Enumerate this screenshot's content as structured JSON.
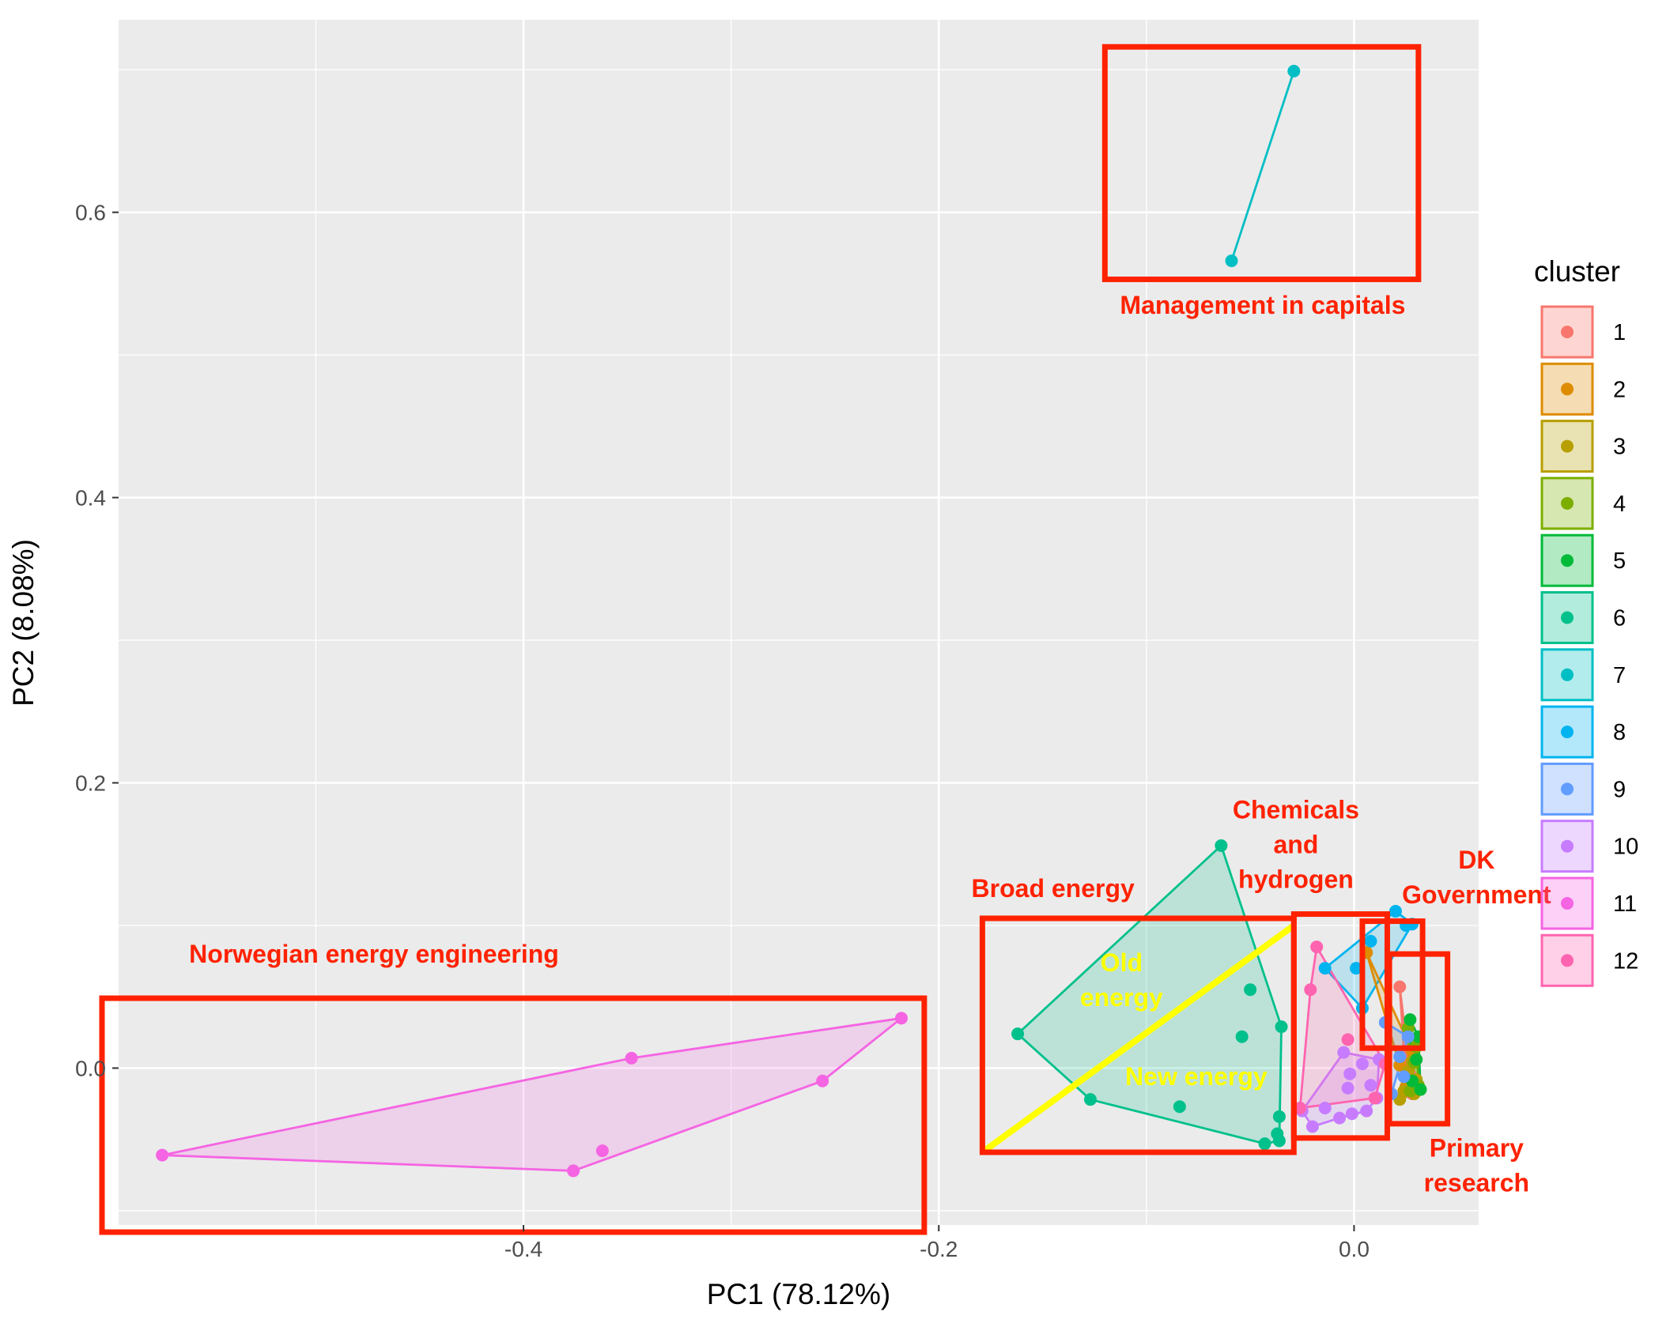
{
  "chart_data": {
    "type": "scatter",
    "xlabel": "PC1 (78.12%)",
    "ylabel": "PC2 (8.08%)",
    "xlim": [
      -0.595,
      0.06
    ],
    "ylim": [
      -0.11,
      0.735
    ],
    "x_ticks": [
      -0.4,
      -0.2,
      0.0
    ],
    "x_tick_labels": [
      "-0.4",
      "-0.2",
      "0.0"
    ],
    "y_ticks": [
      0.0,
      0.2,
      0.4,
      0.6
    ],
    "y_tick_labels": [
      "0.0",
      "0.2",
      "0.4",
      "0.6"
    ],
    "grid": true,
    "legend": {
      "title": "cluster",
      "position": "right",
      "entries": [
        {
          "label": "1",
          "color": "#F8766D"
        },
        {
          "label": "2",
          "color": "#DE8C00"
        },
        {
          "label": "3",
          "color": "#B79F00"
        },
        {
          "label": "4",
          "color": "#7CAE00"
        },
        {
          "label": "5",
          "color": "#00BA38"
        },
        {
          "label": "6",
          "color": "#00C08B"
        },
        {
          "label": "7",
          "color": "#00BFC4"
        },
        {
          "label": "8",
          "color": "#00B4F0"
        },
        {
          "label": "9",
          "color": "#619CFF"
        },
        {
          "label": "10",
          "color": "#C77CFF"
        },
        {
          "label": "11",
          "color": "#F564E3"
        },
        {
          "label": "12",
          "color": "#FF64B0"
        }
      ]
    },
    "series": [
      {
        "cluster": "1",
        "color": "#F8766D",
        "points": [
          [
            0.022,
            0.057
          ],
          [
            0.025,
            0.005
          ],
          [
            0.027,
            -0.005
          ],
          [
            0.028,
            -0.018
          ],
          [
            0.024,
            0.012
          ],
          [
            0.026,
            -0.012
          ]
        ]
      },
      {
        "cluster": "2",
        "color": "#DE8C00",
        "points": [
          [
            0.006,
            0.081
          ],
          [
            0.022,
            0.002
          ],
          [
            0.028,
            0.012
          ],
          [
            0.025,
            -0.013
          ]
        ]
      },
      {
        "cluster": "3",
        "color": "#B79F00",
        "points": [
          [
            0.022,
            -0.022
          ],
          [
            0.029,
            -0.018
          ],
          [
            0.03,
            -0.008
          ],
          [
            0.026,
            -0.002
          ],
          [
            0.024,
            -0.016
          ],
          [
            0.028,
            0.005
          ]
        ]
      },
      {
        "cluster": "4",
        "color": "#7CAE00",
        "points": [
          [
            0.026,
            0.028
          ],
          [
            0.03,
            0.015
          ],
          [
            0.031,
            -0.012
          ],
          [
            0.027,
            -0.016
          ],
          [
            0.029,
            0.004
          ]
        ]
      },
      {
        "cluster": "5",
        "color": "#00BA38",
        "points": [
          [
            0.027,
            0.034
          ],
          [
            0.031,
            0.022
          ],
          [
            0.032,
            -0.015
          ],
          [
            0.028,
            -0.009
          ],
          [
            0.03,
            0.006
          ]
        ]
      },
      {
        "cluster": "6",
        "color": "#00C08B",
        "points": [
          [
            -0.064,
            0.156
          ],
          [
            -0.162,
            0.024
          ],
          [
            -0.127,
            -0.022
          ],
          [
            -0.084,
            -0.027
          ],
          [
            -0.043,
            -0.053
          ],
          [
            -0.036,
            -0.051
          ],
          [
            -0.036,
            -0.034
          ],
          [
            -0.035,
            0.029
          ],
          [
            -0.037,
            -0.046
          ],
          [
            -0.05,
            0.055
          ],
          [
            -0.054,
            0.022
          ]
        ]
      },
      {
        "cluster": "7",
        "color": "#00BFC4",
        "points": [
          [
            -0.059,
            0.566
          ],
          [
            -0.029,
            0.699
          ]
        ]
      },
      {
        "cluster": "8",
        "color": "#00B4F0",
        "points": [
          [
            0.02,
            0.11
          ],
          [
            0.025,
            0.1
          ],
          [
            0.028,
            0.101
          ],
          [
            0.008,
            0.089
          ],
          [
            0.001,
            0.07
          ],
          [
            -0.014,
            0.07
          ],
          [
            0.004,
            0.042
          ]
        ]
      },
      {
        "cluster": "9",
        "color": "#619CFF",
        "points": [
          [
            0.015,
            0.032
          ],
          [
            0.022,
            0.008
          ],
          [
            0.024,
            -0.006
          ],
          [
            0.018,
            -0.018
          ],
          [
            0.026,
            0.022
          ]
        ]
      },
      {
        "cluster": "10",
        "color": "#C77CFF",
        "points": [
          [
            -0.005,
            0.011
          ],
          [
            0.004,
            0.003
          ],
          [
            -0.025,
            -0.03
          ],
          [
            -0.014,
            -0.028
          ],
          [
            -0.007,
            -0.035
          ],
          [
            -0.001,
            -0.032
          ],
          [
            0.006,
            -0.03
          ],
          [
            -0.002,
            -0.004
          ],
          [
            0.011,
            -0.021
          ],
          [
            0.012,
            0.006
          ],
          [
            -0.02,
            -0.041
          ],
          [
            -0.003,
            -0.014
          ],
          [
            0.008,
            -0.012
          ]
        ]
      },
      {
        "cluster": "11",
        "color": "#F564E3",
        "points": [
          [
            -0.574,
            -0.061
          ],
          [
            -0.376,
            -0.072
          ],
          [
            -0.362,
            -0.058
          ],
          [
            -0.348,
            0.007
          ],
          [
            -0.256,
            -0.009
          ],
          [
            -0.218,
            0.035
          ]
        ]
      },
      {
        "cluster": "12",
        "color": "#FF64B0",
        "points": [
          [
            -0.018,
            0.085
          ],
          [
            -0.021,
            0.055
          ],
          [
            -0.026,
            -0.028
          ],
          [
            0.01,
            -0.021
          ],
          [
            0.015,
            0.003
          ],
          [
            -0.003,
            0.02
          ]
        ]
      }
    ],
    "hulls": [
      {
        "cluster": "6",
        "color": "#00C08B",
        "vertices": [
          [
            -0.064,
            0.156
          ],
          [
            -0.035,
            0.029
          ],
          [
            -0.036,
            -0.051
          ],
          [
            -0.043,
            -0.053
          ],
          [
            -0.127,
            -0.022
          ],
          [
            -0.162,
            0.024
          ]
        ]
      },
      {
        "cluster": "7",
        "color": "#00BFC4",
        "vertices": [
          [
            -0.059,
            0.566
          ],
          [
            -0.029,
            0.699
          ]
        ]
      },
      {
        "cluster": "8",
        "color": "#00B4F0",
        "vertices": [
          [
            0.02,
            0.11
          ],
          [
            0.028,
            0.101
          ],
          [
            0.004,
            0.042
          ],
          [
            -0.014,
            0.07
          ]
        ]
      },
      {
        "cluster": "10",
        "color": "#C77CFF",
        "vertices": [
          [
            0.012,
            0.006
          ],
          [
            0.011,
            -0.021
          ],
          [
            0.006,
            -0.03
          ],
          [
            -0.007,
            -0.035
          ],
          [
            -0.02,
            -0.041
          ],
          [
            -0.025,
            -0.03
          ],
          [
            -0.005,
            0.011
          ]
        ]
      },
      {
        "cluster": "11",
        "color": "#F564E3",
        "vertices": [
          [
            -0.574,
            -0.061
          ],
          [
            -0.348,
            0.007
          ],
          [
            -0.218,
            0.035
          ],
          [
            -0.256,
            -0.009
          ],
          [
            -0.376,
            -0.072
          ]
        ]
      },
      {
        "cluster": "12",
        "color": "#FF64B0",
        "vertices": [
          [
            -0.018,
            0.085
          ],
          [
            0.015,
            0.003
          ],
          [
            0.01,
            -0.021
          ],
          [
            -0.026,
            -0.028
          ],
          [
            -0.021,
            0.055
          ]
        ]
      },
      {
        "cluster": "2",
        "color": "#DE8C00",
        "vertices": [
          [
            0.006,
            0.081
          ],
          [
            0.028,
            0.012
          ],
          [
            0.025,
            -0.013
          ],
          [
            0.022,
            0.002
          ]
        ]
      },
      {
        "cluster": "1",
        "color": "#F8766D",
        "vertices": [
          [
            0.022,
            0.057
          ],
          [
            0.027,
            -0.005
          ],
          [
            0.028,
            -0.018
          ],
          [
            0.024,
            0.012
          ]
        ]
      },
      {
        "cluster": "9",
        "color": "#619CFF",
        "vertices": [
          [
            0.015,
            0.032
          ],
          [
            0.026,
            0.022
          ],
          [
            0.018,
            -0.018
          ]
        ]
      },
      {
        "cluster": "4",
        "color": "#7CAE00",
        "vertices": [
          [
            0.026,
            0.028
          ],
          [
            0.03,
            0.015
          ],
          [
            0.031,
            -0.012
          ],
          [
            0.027,
            -0.016
          ]
        ]
      },
      {
        "cluster": "5",
        "color": "#00BA38",
        "vertices": [
          [
            0.027,
            0.034
          ],
          [
            0.031,
            0.022
          ],
          [
            0.032,
            -0.015
          ],
          [
            0.028,
            -0.009
          ]
        ]
      },
      {
        "cluster": "3",
        "color": "#B79F00",
        "vertices": [
          [
            0.028,
            0.005
          ],
          [
            0.03,
            -0.008
          ],
          [
            0.029,
            -0.018
          ],
          [
            0.022,
            -0.022
          ]
        ]
      }
    ],
    "annotations": {
      "boxes": [
        {
          "name": "management-in-capitals-box",
          "x0": -0.12,
          "x1": 0.031,
          "y0": 0.553,
          "y1": 0.716
        },
        {
          "name": "broad-energy-box",
          "x0": -0.179,
          "x1": -0.029,
          "y0": -0.059,
          "y1": 0.105
        },
        {
          "name": "chemicals-and-hydrogen-box",
          "x0": -0.029,
          "x1": 0.016,
          "y0": -0.049,
          "y1": 0.108
        },
        {
          "name": "dk-government-box",
          "x0": 0.004,
          "x1": 0.033,
          "y0": 0.014,
          "y1": 0.103
        },
        {
          "name": "primary-research-box",
          "x0": 0.017,
          "x1": 0.045,
          "y0": -0.039,
          "y1": 0.08
        },
        {
          "name": "norwegian-energy-engineering-box",
          "x0": -0.603,
          "x1": -0.207,
          "y0": -0.115,
          "y1": 0.049
        }
      ],
      "divider_line": {
        "color": "#ffff00",
        "x0": -0.179,
        "y0": -0.059,
        "x1": -0.029,
        "y1": 0.1
      },
      "labels": [
        {
          "name": "management-in-capitals-label",
          "lines": [
            "Management in capitals"
          ],
          "x": -0.044,
          "y": 0.529,
          "color": "#ff2200"
        },
        {
          "name": "broad-energy-label",
          "lines": [
            "Broad energy"
          ],
          "x": -0.145,
          "y": 0.12,
          "color": "#ff2200"
        },
        {
          "name": "chemicals-and-hydrogen-label",
          "lines": [
            "Chemicals",
            "and",
            "hydrogen"
          ],
          "x": -0.028,
          "y": 0.175,
          "color": "#ff2200"
        },
        {
          "name": "dk-government-label",
          "lines": [
            "DK",
            "Government"
          ],
          "x": 0.059,
          "y": 0.14,
          "color": "#ff2200"
        },
        {
          "name": "primary-research-label",
          "lines": [
            "Primary",
            "research"
          ],
          "x": 0.059,
          "y": -0.062,
          "color": "#ff2200"
        },
        {
          "name": "norwegian-energy-engineering-label",
          "lines": [
            "Norwegian energy engineering"
          ],
          "x": -0.472,
          "y": 0.074,
          "color": "#ff2200"
        },
        {
          "name": "old-energy-label",
          "lines": [
            "Old",
            "energy"
          ],
          "x": -0.112,
          "y": 0.068,
          "color": "#ffff00"
        },
        {
          "name": "new-energy-label",
          "lines": [
            "New energy"
          ],
          "x": -0.076,
          "y": -0.012,
          "color": "#ffff00"
        }
      ]
    }
  }
}
